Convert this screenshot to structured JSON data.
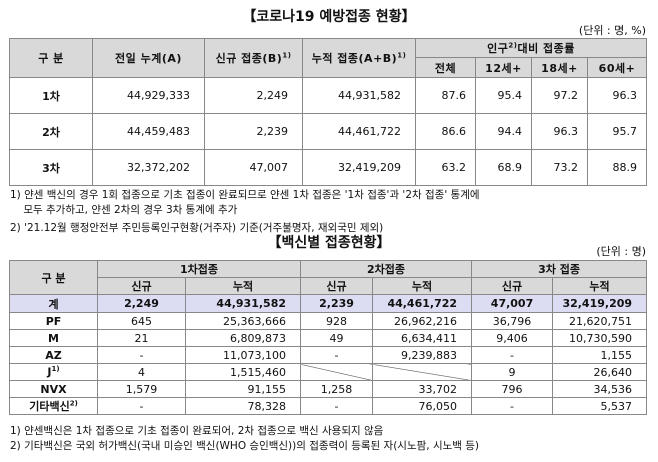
{
  "section1": {
    "title": "【코로나19 예방접종 현황】",
    "unit": "(단위 : 명, %)",
    "headers": {
      "category": "구 분",
      "prev_total": "전일 누계(A)",
      "new": "신규 접종(B)",
      "new_sup": "1)",
      "cumulative": "누적 접종(A+B)",
      "cumulative_sup": "1)",
      "rate_group": "인구",
      "rate_group_sup": "2)",
      "rate_group_rest": "대비 접종률",
      "rate_cols": [
        "전체",
        "12세+",
        "18세+",
        "60세+"
      ]
    },
    "rows": [
      {
        "label": "1차",
        "prev": "44,929,333",
        "new": "2,249",
        "cum": "44,931,582",
        "rates": [
          "87.6",
          "95.4",
          "97.2",
          "96.3"
        ]
      },
      {
        "label": "2차",
        "prev": "44,459,483",
        "new": "2,239",
        "cum": "44,461,722",
        "rates": [
          "86.6",
          "94.4",
          "96.3",
          "95.7"
        ]
      },
      {
        "label": "3차",
        "prev": "32,372,202",
        "new": "47,007",
        "cum": "32,419,209",
        "rates": [
          "63.2",
          "68.9",
          "73.2",
          "88.9"
        ]
      }
    ],
    "notes": [
      "1) 얀센 백신의 경우 1회 접종으로 기초 접종이 완료되므로 얀센 1차 접종은 '1차 접종'과 '2차 접종' 통계에",
      "    모두 추가하고, 얀센 2차의 경우 3차 통계에 추가",
      "2) '21.12월 행정안전부 주민등록인구현황(거주자) 기준(거주불명자, 재외국민 제외)"
    ]
  },
  "section2": {
    "title": "【백신별 접종현황】",
    "unit": "(단위 : 명)",
    "headers": {
      "category": "구 분",
      "dose1": "1차접종",
      "dose2": "2차접종",
      "dose3": "3차 접종",
      "new": "신규",
      "cum": "누적"
    },
    "rows": [
      {
        "label": "계",
        "vals": [
          "2,249",
          "44,931,582",
          "2,239",
          "44,461,722",
          "47,007",
          "32,419,209"
        ]
      },
      {
        "label": "PF",
        "vals": [
          "645",
          "25,363,666",
          "928",
          "26,962,216",
          "36,796",
          "21,620,751"
        ]
      },
      {
        "label": "M",
        "vals": [
          "21",
          "6,809,873",
          "49",
          "6,634,411",
          "9,406",
          "10,730,590"
        ]
      },
      {
        "label": "AZ",
        "vals": [
          "-",
          "11,073,100",
          "-",
          "9,239,883",
          "-",
          "1,155"
        ]
      },
      {
        "label": "J",
        "label_sup": "1)",
        "vals": [
          "4",
          "1,515,460",
          "",
          "",
          "9",
          "26,640"
        ]
      },
      {
        "label": "NVX",
        "vals": [
          "1,579",
          "91,155",
          "1,258",
          "33,702",
          "796",
          "34,536"
        ]
      },
      {
        "label": "기타백신",
        "label_sup": "2)",
        "vals": [
          "-",
          "78,328",
          "-",
          "76,050",
          "-",
          "5,537"
        ]
      }
    ],
    "notes": [
      "1) 얀센백신은 1차 접종으로 기초 접종이 완료되어, 2차 접종으로 백신 사용되지 않음",
      "2) 기타백신은 국외 허가백신(국내 미승인 백신(WHO 승인백신))의 접종력이 등록된 자(시노팜, 시노백 등)"
    ]
  }
}
